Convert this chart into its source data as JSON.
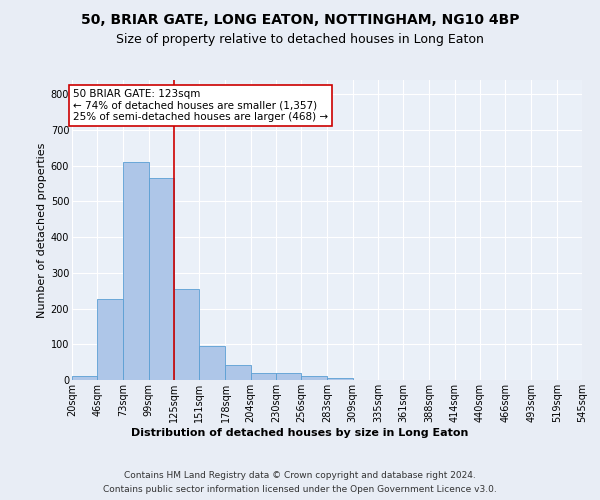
{
  "title1": "50, BRIAR GATE, LONG EATON, NOTTINGHAM, NG10 4BP",
  "title2": "Size of property relative to detached houses in Long Eaton",
  "xlabel": "Distribution of detached houses by size in Long Eaton",
  "ylabel": "Number of detached properties",
  "footnote1": "Contains HM Land Registry data © Crown copyright and database right 2024.",
  "footnote2": "Contains public sector information licensed under the Open Government Licence v3.0.",
  "annotation_line1": "50 BRIAR GATE: 123sqm",
  "annotation_line2": "← 74% of detached houses are smaller (1,357)",
  "annotation_line3": "25% of semi-detached houses are larger (468) →",
  "property_size": 123,
  "bin_edges": [
    20,
    46,
    73,
    99,
    125,
    151,
    178,
    204,
    230,
    256,
    283,
    309,
    335,
    361,
    388,
    414,
    440,
    466,
    493,
    519,
    545
  ],
  "bar_values": [
    10,
    228,
    610,
    565,
    255,
    96,
    43,
    20,
    20,
    10,
    5,
    0,
    0,
    0,
    0,
    0,
    0,
    0,
    0,
    0
  ],
  "bar_color": "#aec6e8",
  "bar_edge_color": "#5a9fd4",
  "vline_color": "#cc0000",
  "vline_x": 125,
  "ylim": [
    0,
    840
  ],
  "yticks": [
    0,
    100,
    200,
    300,
    400,
    500,
    600,
    700,
    800
  ],
  "background_color": "#e8edf5",
  "axes_background": "#eaf0f8",
  "grid_color": "#ffffff",
  "annotation_box_color": "#ffffff",
  "annotation_box_edge": "#cc0000",
  "title1_fontsize": 10,
  "title2_fontsize": 9,
  "axis_label_fontsize": 8,
  "tick_fontsize": 7,
  "annotation_fontsize": 7.5,
  "footnote_fontsize": 6.5
}
